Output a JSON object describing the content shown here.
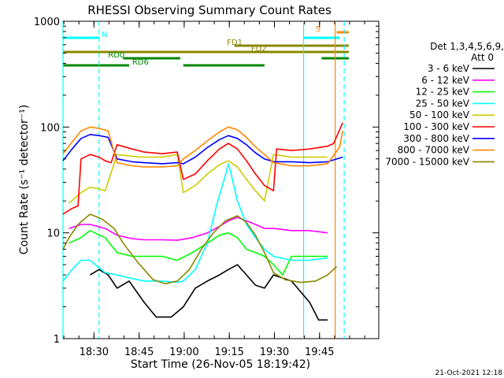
{
  "chart_data": {
    "type": "line",
    "title": "RHESSI Observing Summary Count Rates",
    "xlabel": "Start Time (26-Nov-05 18:19:42)",
    "ylabel": "Count Rate (s⁻¹ detector⁻¹)",
    "x_unit": "minutes after 18:19:42 UT",
    "xlim": [
      0,
      105
    ],
    "ylim": [
      1,
      1000
    ],
    "yscale": "log",
    "grid": false,
    "x_tick_labels": [
      "18:30",
      "18:45",
      "19:00",
      "19:15",
      "19:30",
      "19:45"
    ],
    "y_tick_labels": [
      "1",
      "10",
      "100",
      "1000"
    ],
    "legend_position": "right",
    "legend_header": "Det 1,3,4,5,6,9,",
    "legend_subheader": "Att 0",
    "series": [
      {
        "name": "3 - 6 keV",
        "color": "#000000",
        "points": [
          [
            9,
            4
          ],
          [
            12,
            4.5
          ],
          [
            15,
            4
          ],
          [
            18,
            3
          ],
          [
            22,
            3.5
          ],
          [
            27,
            2.2
          ],
          [
            31,
            1.6
          ],
          [
            36,
            1.6
          ],
          [
            40,
            2
          ],
          [
            44,
            3
          ],
          [
            48,
            3.5
          ],
          [
            52,
            4
          ],
          [
            55,
            4.5
          ],
          [
            58,
            5
          ],
          [
            61,
            4
          ],
          [
            64,
            3.2
          ],
          [
            67,
            3
          ],
          [
            70,
            4
          ],
          [
            76,
            3.5
          ],
          [
            82,
            2.2
          ],
          [
            85,
            1.5
          ],
          [
            88,
            1.5
          ]
        ]
      },
      {
        "name": "6 - 12 keV",
        "color": "#ff00ff",
        "points": [
          [
            2,
            11
          ],
          [
            6,
            12
          ],
          [
            9,
            12
          ],
          [
            14,
            11
          ],
          [
            18,
            9.5
          ],
          [
            23,
            8.8
          ],
          [
            27,
            8.6
          ],
          [
            33,
            8.6
          ],
          [
            38,
            8.5
          ],
          [
            43,
            9
          ],
          [
            48,
            10
          ],
          [
            52,
            11.5
          ],
          [
            55,
            13
          ],
          [
            58,
            14
          ],
          [
            61,
            13
          ],
          [
            64,
            12
          ],
          [
            67,
            11
          ],
          [
            70,
            11
          ],
          [
            76,
            10.5
          ],
          [
            82,
            10.5
          ],
          [
            88,
            10
          ]
        ]
      },
      {
        "name": "12 - 25 keV",
        "color": "#00ff00",
        "points": [
          [
            2,
            8
          ],
          [
            6,
            9
          ],
          [
            9,
            10.5
          ],
          [
            14,
            9
          ],
          [
            18,
            6.5
          ],
          [
            23,
            6
          ],
          [
            27,
            6
          ],
          [
            33,
            6
          ],
          [
            38,
            5.5
          ],
          [
            43,
            6.5
          ],
          [
            48,
            8
          ],
          [
            52,
            9.5
          ],
          [
            55,
            10
          ],
          [
            58,
            9
          ],
          [
            61,
            7
          ],
          [
            64,
            6.5
          ],
          [
            67,
            6
          ],
          [
            70,
            5
          ],
          [
            73,
            4
          ],
          [
            76,
            6
          ],
          [
            82,
            6
          ],
          [
            88,
            6
          ]
        ]
      },
      {
        "name": "25 - 50 keV",
        "color": "#00ffff",
        "points": [
          [
            0,
            3.5
          ],
          [
            3,
            4.5
          ],
          [
            6,
            5.5
          ],
          [
            9,
            5.5
          ],
          [
            14,
            4.2
          ],
          [
            18,
            4
          ],
          [
            23,
            3.7
          ],
          [
            27,
            3.5
          ],
          [
            33,
            3.5
          ],
          [
            38,
            3.4
          ],
          [
            40,
            3.5
          ],
          [
            44,
            4.5
          ],
          [
            48,
            8
          ],
          [
            51,
            18
          ],
          [
            54,
            35
          ],
          [
            55,
            45
          ],
          [
            56,
            35
          ],
          [
            58,
            20
          ],
          [
            61,
            12
          ],
          [
            64,
            9
          ],
          [
            67,
            7
          ],
          [
            70,
            6
          ],
          [
            76,
            5.5
          ],
          [
            82,
            5.5
          ],
          [
            88,
            5.8
          ]
        ]
      },
      {
        "name": "50 - 100 keV",
        "color": "#cccc00",
        "points": [
          [
            2,
            19
          ],
          [
            6,
            24
          ],
          [
            9,
            27
          ],
          [
            12,
            26
          ],
          [
            14,
            25
          ],
          [
            18,
            55
          ],
          [
            23,
            53
          ],
          [
            27,
            52
          ],
          [
            33,
            52
          ],
          [
            38,
            55
          ],
          [
            40,
            24
          ],
          [
            44,
            28
          ],
          [
            48,
            36
          ],
          [
            52,
            44
          ],
          [
            55,
            48
          ],
          [
            58,
            42
          ],
          [
            61,
            32
          ],
          [
            64,
            25
          ],
          [
            67,
            20
          ],
          [
            70,
            55
          ],
          [
            76,
            52
          ],
          [
            82,
            52
          ],
          [
            88,
            52
          ]
        ]
      },
      {
        "name": "100 - 300 keV",
        "color": "#ff0000",
        "points": [
          [
            0,
            15
          ],
          [
            3,
            17
          ],
          [
            5,
            18
          ],
          [
            6,
            50
          ],
          [
            9,
            55
          ],
          [
            12,
            52
          ],
          [
            14,
            48
          ],
          [
            16,
            46
          ],
          [
            18,
            68
          ],
          [
            23,
            62
          ],
          [
            27,
            58
          ],
          [
            33,
            56
          ],
          [
            38,
            58
          ],
          [
            40,
            32
          ],
          [
            44,
            36
          ],
          [
            48,
            48
          ],
          [
            52,
            62
          ],
          [
            55,
            70
          ],
          [
            58,
            62
          ],
          [
            61,
            48
          ],
          [
            64,
            36
          ],
          [
            67,
            28
          ],
          [
            70,
            25
          ],
          [
            71,
            62
          ],
          [
            76,
            60
          ],
          [
            82,
            62
          ],
          [
            88,
            66
          ],
          [
            90,
            70
          ],
          [
            93,
            110
          ]
        ]
      },
      {
        "name": "300 - 800 keV",
        "color": "#0000ff",
        "points": [
          [
            0,
            48
          ],
          [
            3,
            62
          ],
          [
            6,
            78
          ],
          [
            9,
            85
          ],
          [
            12,
            83
          ],
          [
            15,
            80
          ],
          [
            18,
            50
          ],
          [
            23,
            47
          ],
          [
            27,
            46
          ],
          [
            33,
            45
          ],
          [
            38,
            46
          ],
          [
            40,
            45
          ],
          [
            44,
            52
          ],
          [
            48,
            64
          ],
          [
            52,
            76
          ],
          [
            55,
            83
          ],
          [
            58,
            78
          ],
          [
            61,
            68
          ],
          [
            64,
            57
          ],
          [
            67,
            50
          ],
          [
            70,
            47
          ],
          [
            76,
            47
          ],
          [
            82,
            46
          ],
          [
            88,
            47
          ],
          [
            93,
            52
          ]
        ]
      },
      {
        "name": "800 - 7000 keV",
        "color": "#ff8800",
        "points": [
          [
            0,
            56
          ],
          [
            3,
            72
          ],
          [
            6,
            92
          ],
          [
            9,
            100
          ],
          [
            12,
            97
          ],
          [
            15,
            92
          ],
          [
            18,
            46
          ],
          [
            23,
            43
          ],
          [
            27,
            42
          ],
          [
            33,
            42
          ],
          [
            38,
            43
          ],
          [
            40,
            50
          ],
          [
            44,
            60
          ],
          [
            48,
            74
          ],
          [
            52,
            90
          ],
          [
            55,
            100
          ],
          [
            58,
            94
          ],
          [
            61,
            80
          ],
          [
            64,
            65
          ],
          [
            67,
            55
          ],
          [
            70,
            46
          ],
          [
            76,
            43
          ],
          [
            82,
            43
          ],
          [
            88,
            45
          ],
          [
            92,
            65
          ],
          [
            93,
            92
          ]
        ]
      },
      {
        "name": "7000 - 15000 keV",
        "color": "#888800",
        "points": [
          [
            0,
            7
          ],
          [
            2,
            9
          ],
          [
            5,
            12
          ],
          [
            9,
            15
          ],
          [
            13,
            13.5
          ],
          [
            17,
            11
          ],
          [
            20,
            8
          ],
          [
            25,
            5.2
          ],
          [
            30,
            3.6
          ],
          [
            34,
            3.3
          ],
          [
            38,
            3.5
          ],
          [
            42,
            4.5
          ],
          [
            46,
            7
          ],
          [
            50,
            10
          ],
          [
            54,
            13
          ],
          [
            58,
            14.5
          ],
          [
            61,
            12.5
          ],
          [
            64,
            9.5
          ],
          [
            67,
            6.5
          ],
          [
            70,
            4.2
          ],
          [
            74,
            3.6
          ],
          [
            79,
            3.4
          ],
          [
            84,
            3.5
          ],
          [
            88,
            4
          ],
          [
            91,
            4.8
          ]
        ]
      }
    ],
    "flag_bars": [
      {
        "label": "N",
        "color": "#00ffff",
        "segments": [
          [
            0,
            12
          ],
          [
            80,
            92
          ]
        ]
      },
      {
        "label": "S",
        "color": "#ff8800",
        "segments": [
          [
            91,
            95
          ]
        ]
      },
      {
        "label": "FD1",
        "color": "#888800",
        "segments": [
          [
            57,
            95
          ]
        ]
      },
      {
        "label": "FD2",
        "color": "#888800",
        "segments": [
          [
            0,
            95
          ]
        ]
      },
      {
        "label": "RD0",
        "color": "#008800",
        "segments": [
          [
            20,
            39
          ],
          [
            86,
            95
          ]
        ]
      },
      {
        "label": "RD6",
        "color": "#008800",
        "segments": [
          [
            0,
            22
          ],
          [
            40,
            67
          ]
        ]
      }
    ],
    "vertical_markers": [
      {
        "x": 0,
        "color": "#00ffff",
        "style": "solid"
      },
      {
        "x": 12,
        "color": "#00ffff",
        "style": "dashed"
      },
      {
        "x": 80,
        "color": "#00ffff",
        "style": "solid"
      },
      {
        "x": 90.5,
        "color": "#ff8800",
        "style": "solid"
      },
      {
        "x": 93.5,
        "color": "#00ffff",
        "style": "dashed"
      }
    ]
  },
  "footer_date": "21-Oct-2021 12:18"
}
